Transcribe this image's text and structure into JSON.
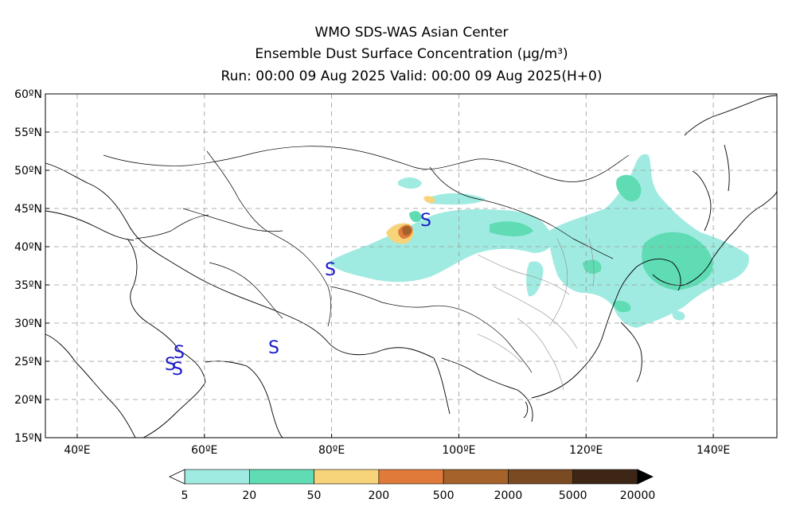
{
  "title": {
    "line1": "WMO SDS-WAS Asian Center",
    "line2": "Ensemble Dust Surface Concentration (μg/m³)",
    "line3": "Run: 00:00 09 Aug 2025     Valid: 00:00 09 Aug 2025(H+0)"
  },
  "map": {
    "lon_range": [
      35,
      150
    ],
    "lat_range": [
      15,
      60
    ],
    "lon_ticks": [
      "40ºE",
      "60ºE",
      "80ºE",
      "100ºE",
      "120ºE",
      "140ºE"
    ],
    "lat_ticks": [
      "60ºN",
      "55ºN",
      "50ºN",
      "45ºN",
      "40ºN",
      "35ºN",
      "30ºN",
      "25ºN",
      "20ºN",
      "15ºN"
    ],
    "grid": "dashed",
    "station_symbol": "S",
    "station_color": "#1a1ac8"
  },
  "colorbar": {
    "levels": [
      "5",
      "20",
      "50",
      "200",
      "500",
      "2000",
      "5000",
      "20000"
    ],
    "colors": [
      "#a0ebe1",
      "#5fdcb4",
      "#f7d37a",
      "#e07a3a",
      "#a5622a",
      "#7a4a22",
      "#3d2616"
    ]
  }
}
